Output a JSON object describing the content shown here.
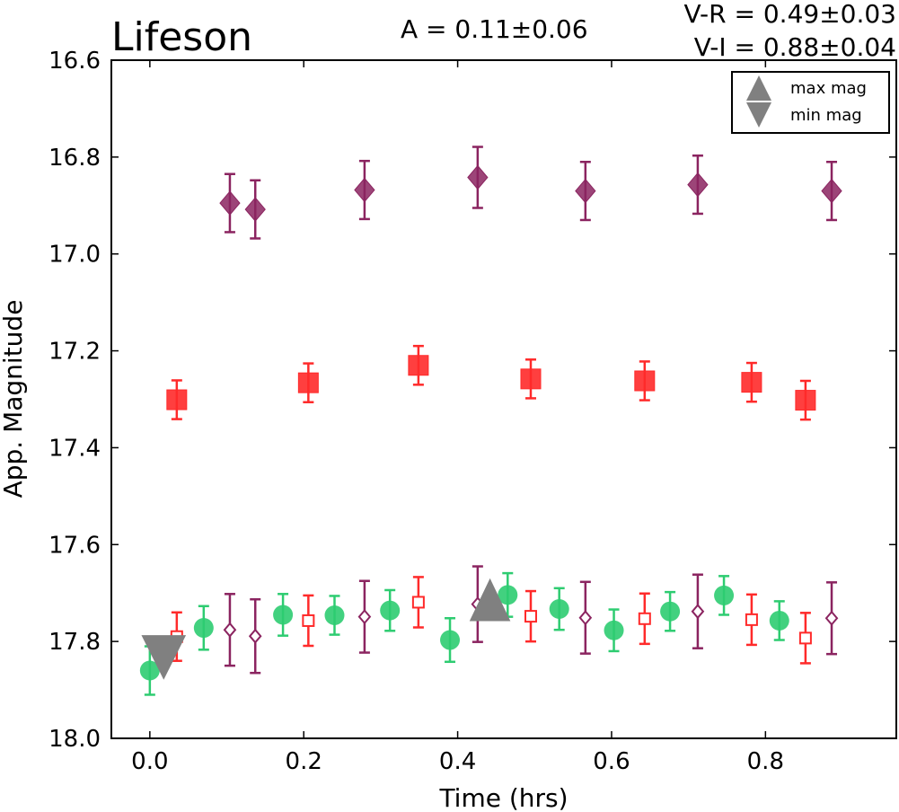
{
  "chart_data": {
    "type": "scatter",
    "title": "Lifeson",
    "amplitude_text": "A  = 0.11±0.06",
    "color_text_1": "V-R = 0.49±0.03",
    "color_text_2": "V-I  = 0.88±0.04",
    "xlabel": "Time (hrs)",
    "ylabel": "App. Magnitude",
    "xlim": [
      -0.05,
      0.97
    ],
    "ylim": [
      18.0,
      16.6
    ],
    "y_inverted": true,
    "x_ticks": [
      "0.0",
      "0.2",
      "0.4",
      "0.6",
      "0.8"
    ],
    "x_tick_values": [
      0.0,
      0.2,
      0.4,
      0.6,
      0.8
    ],
    "y_ticks": [
      "16.6",
      "16.8",
      "17.0",
      "17.2",
      "17.4",
      "17.6",
      "17.8",
      "18.0"
    ],
    "y_tick_values": [
      16.6,
      16.8,
      17.0,
      17.2,
      17.4,
      17.6,
      17.8,
      18.0
    ],
    "grid": false,
    "legend_position": "top-right",
    "legend": [
      {
        "label": "max mag",
        "marker": "triangle-up",
        "color": "#808080"
      },
      {
        "label": "min mag",
        "marker": "triangle-down",
        "color": "#808080"
      }
    ],
    "colors": {
      "V": "#2ecc71",
      "R": "#ff2a2a",
      "I": "#8b2460"
    },
    "series": [
      {
        "marker": "diamond-filled",
        "color": "#8b2460",
        "x": [
          0.104,
          0.137,
          0.279,
          0.426,
          0.566,
          0.712,
          0.886
        ],
        "y": [
          16.895,
          16.908,
          16.868,
          16.842,
          16.87,
          16.857,
          16.87
        ],
        "err": [
          0.06,
          0.06,
          0.06,
          0.063,
          0.06,
          0.06,
          0.06
        ]
      },
      {
        "marker": "square-filled",
        "color": "#ff2a2a",
        "x": [
          0.035,
          0.206,
          0.349,
          0.495,
          0.643,
          0.782,
          0.852
        ],
        "y": [
          17.301,
          17.266,
          17.23,
          17.258,
          17.262,
          17.265,
          17.302
        ],
        "err": [
          0.04,
          0.04,
          0.04,
          0.04,
          0.04,
          0.04,
          0.04
        ]
      },
      {
        "marker": "circle-filled",
        "color": "#2ecc71",
        "x": [
          0.0,
          0.07,
          0.173,
          0.24,
          0.312,
          0.39,
          0.465,
          0.532,
          0.603,
          0.676,
          0.746,
          0.818
        ],
        "y": [
          17.86,
          17.772,
          17.745,
          17.746,
          17.736,
          17.797,
          17.704,
          17.733,
          17.777,
          17.738,
          17.705,
          17.757
        ],
        "err": [
          0.05,
          0.045,
          0.043,
          0.04,
          0.042,
          0.045,
          0.045,
          0.043,
          0.043,
          0.04,
          0.04,
          0.04
        ]
      },
      {
        "marker": "square-open",
        "color": "#ff2a2a",
        "x": [
          0.035,
          0.206,
          0.349,
          0.495,
          0.643,
          0.782,
          0.852
        ],
        "y": [
          17.79,
          17.757,
          17.719,
          17.748,
          17.753,
          17.755,
          17.793
        ],
        "err": [
          0.05,
          0.052,
          0.052,
          0.052,
          0.052,
          0.052,
          0.052
        ]
      },
      {
        "marker": "diamond-open",
        "color": "#8b2460",
        "x": [
          0.104,
          0.137,
          0.279,
          0.426,
          0.566,
          0.712,
          0.886
        ],
        "y": [
          17.776,
          17.789,
          17.749,
          17.723,
          17.751,
          17.738,
          17.752
        ],
        "err": [
          0.074,
          0.076,
          0.074,
          0.078,
          0.074,
          0.076,
          0.074
        ]
      }
    ],
    "extrema": [
      {
        "label": "min mag",
        "marker": "triangle-down",
        "x": 0.018,
        "y": 17.825,
        "color": "#808080"
      },
      {
        "label": "max mag",
        "marker": "triangle-up",
        "x": 0.442,
        "y": 17.72,
        "color": "#808080"
      }
    ]
  }
}
